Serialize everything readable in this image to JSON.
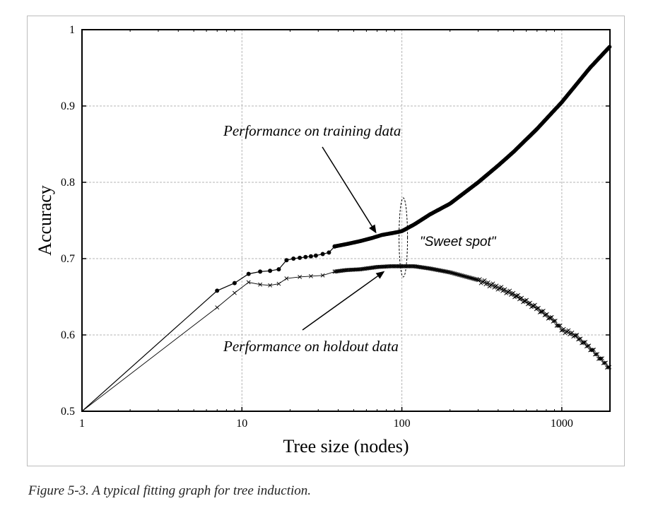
{
  "chart_data": {
    "type": "line",
    "xscale": "log",
    "xlim": [
      1,
      2000
    ],
    "ylim": [
      0.5,
      1.0
    ],
    "grid": true,
    "xlabel": "Tree size (nodes)",
    "ylabel": "Accuracy",
    "xticks": [
      "1",
      "10",
      "100",
      "1000"
    ],
    "yticks": [
      "0.5",
      "0.6",
      "0.7",
      "0.8",
      "0.9",
      "1"
    ],
    "series": [
      {
        "name": "Performance on training data",
        "marker": "dot",
        "color": "#000000",
        "points": [
          [
            1,
            0.5
          ],
          [
            7,
            0.658
          ],
          [
            9,
            0.668
          ],
          [
            11,
            0.68
          ],
          [
            13,
            0.683
          ],
          [
            15,
            0.684
          ],
          [
            17,
            0.686
          ],
          [
            19,
            0.698
          ],
          [
            21,
            0.7
          ],
          [
            23,
            0.701
          ],
          [
            25,
            0.702
          ],
          [
            27,
            0.703
          ],
          [
            29,
            0.704
          ],
          [
            32,
            0.706
          ],
          [
            35,
            0.708
          ],
          [
            38,
            0.716
          ],
          [
            45,
            0.719
          ],
          [
            55,
            0.723
          ],
          [
            65,
            0.727
          ],
          [
            75,
            0.731
          ],
          [
            90,
            0.734
          ],
          [
            100,
            0.736
          ],
          [
            120,
            0.745
          ],
          [
            150,
            0.758
          ],
          [
            200,
            0.772
          ],
          [
            300,
            0.8
          ],
          [
            400,
            0.822
          ],
          [
            500,
            0.84
          ],
          [
            700,
            0.87
          ],
          [
            1000,
            0.905
          ],
          [
            1500,
            0.95
          ],
          [
            2000,
            0.978
          ]
        ]
      },
      {
        "name": "Performance on holdout data",
        "marker": "x",
        "color": "#000000",
        "points": [
          [
            1,
            0.5
          ],
          [
            7,
            0.636
          ],
          [
            9,
            0.655
          ],
          [
            11,
            0.669
          ],
          [
            13,
            0.666
          ],
          [
            15,
            0.665
          ],
          [
            17,
            0.667
          ],
          [
            19,
            0.674
          ],
          [
            23,
            0.676
          ],
          [
            27,
            0.677
          ],
          [
            32,
            0.678
          ],
          [
            38,
            0.683
          ],
          [
            45,
            0.685
          ],
          [
            55,
            0.686
          ],
          [
            70,
            0.689
          ],
          [
            85,
            0.69
          ],
          [
            100,
            0.69
          ],
          [
            120,
            0.69
          ],
          [
            150,
            0.687
          ],
          [
            200,
            0.682
          ],
          [
            300,
            0.672
          ],
          [
            400,
            0.662
          ],
          [
            500,
            0.653
          ],
          [
            700,
            0.635
          ],
          [
            900,
            0.618
          ],
          [
            1000,
            0.607
          ],
          [
            1200,
            0.6
          ],
          [
            1500,
            0.583
          ],
          [
            2000,
            0.556
          ]
        ]
      }
    ],
    "annotations": [
      {
        "text": "Performance on training data",
        "arrow_to": [
          70,
          0.729
        ]
      },
      {
        "text": "Performance on holdout data",
        "arrow_to": [
          80,
          0.69
        ]
      },
      {
        "text": "\"Sweet spot\"",
        "ellipse_at": [
          100,
          0.71
        ]
      }
    ]
  },
  "caption": "Figure 5-3. A typical fitting graph for tree induction."
}
